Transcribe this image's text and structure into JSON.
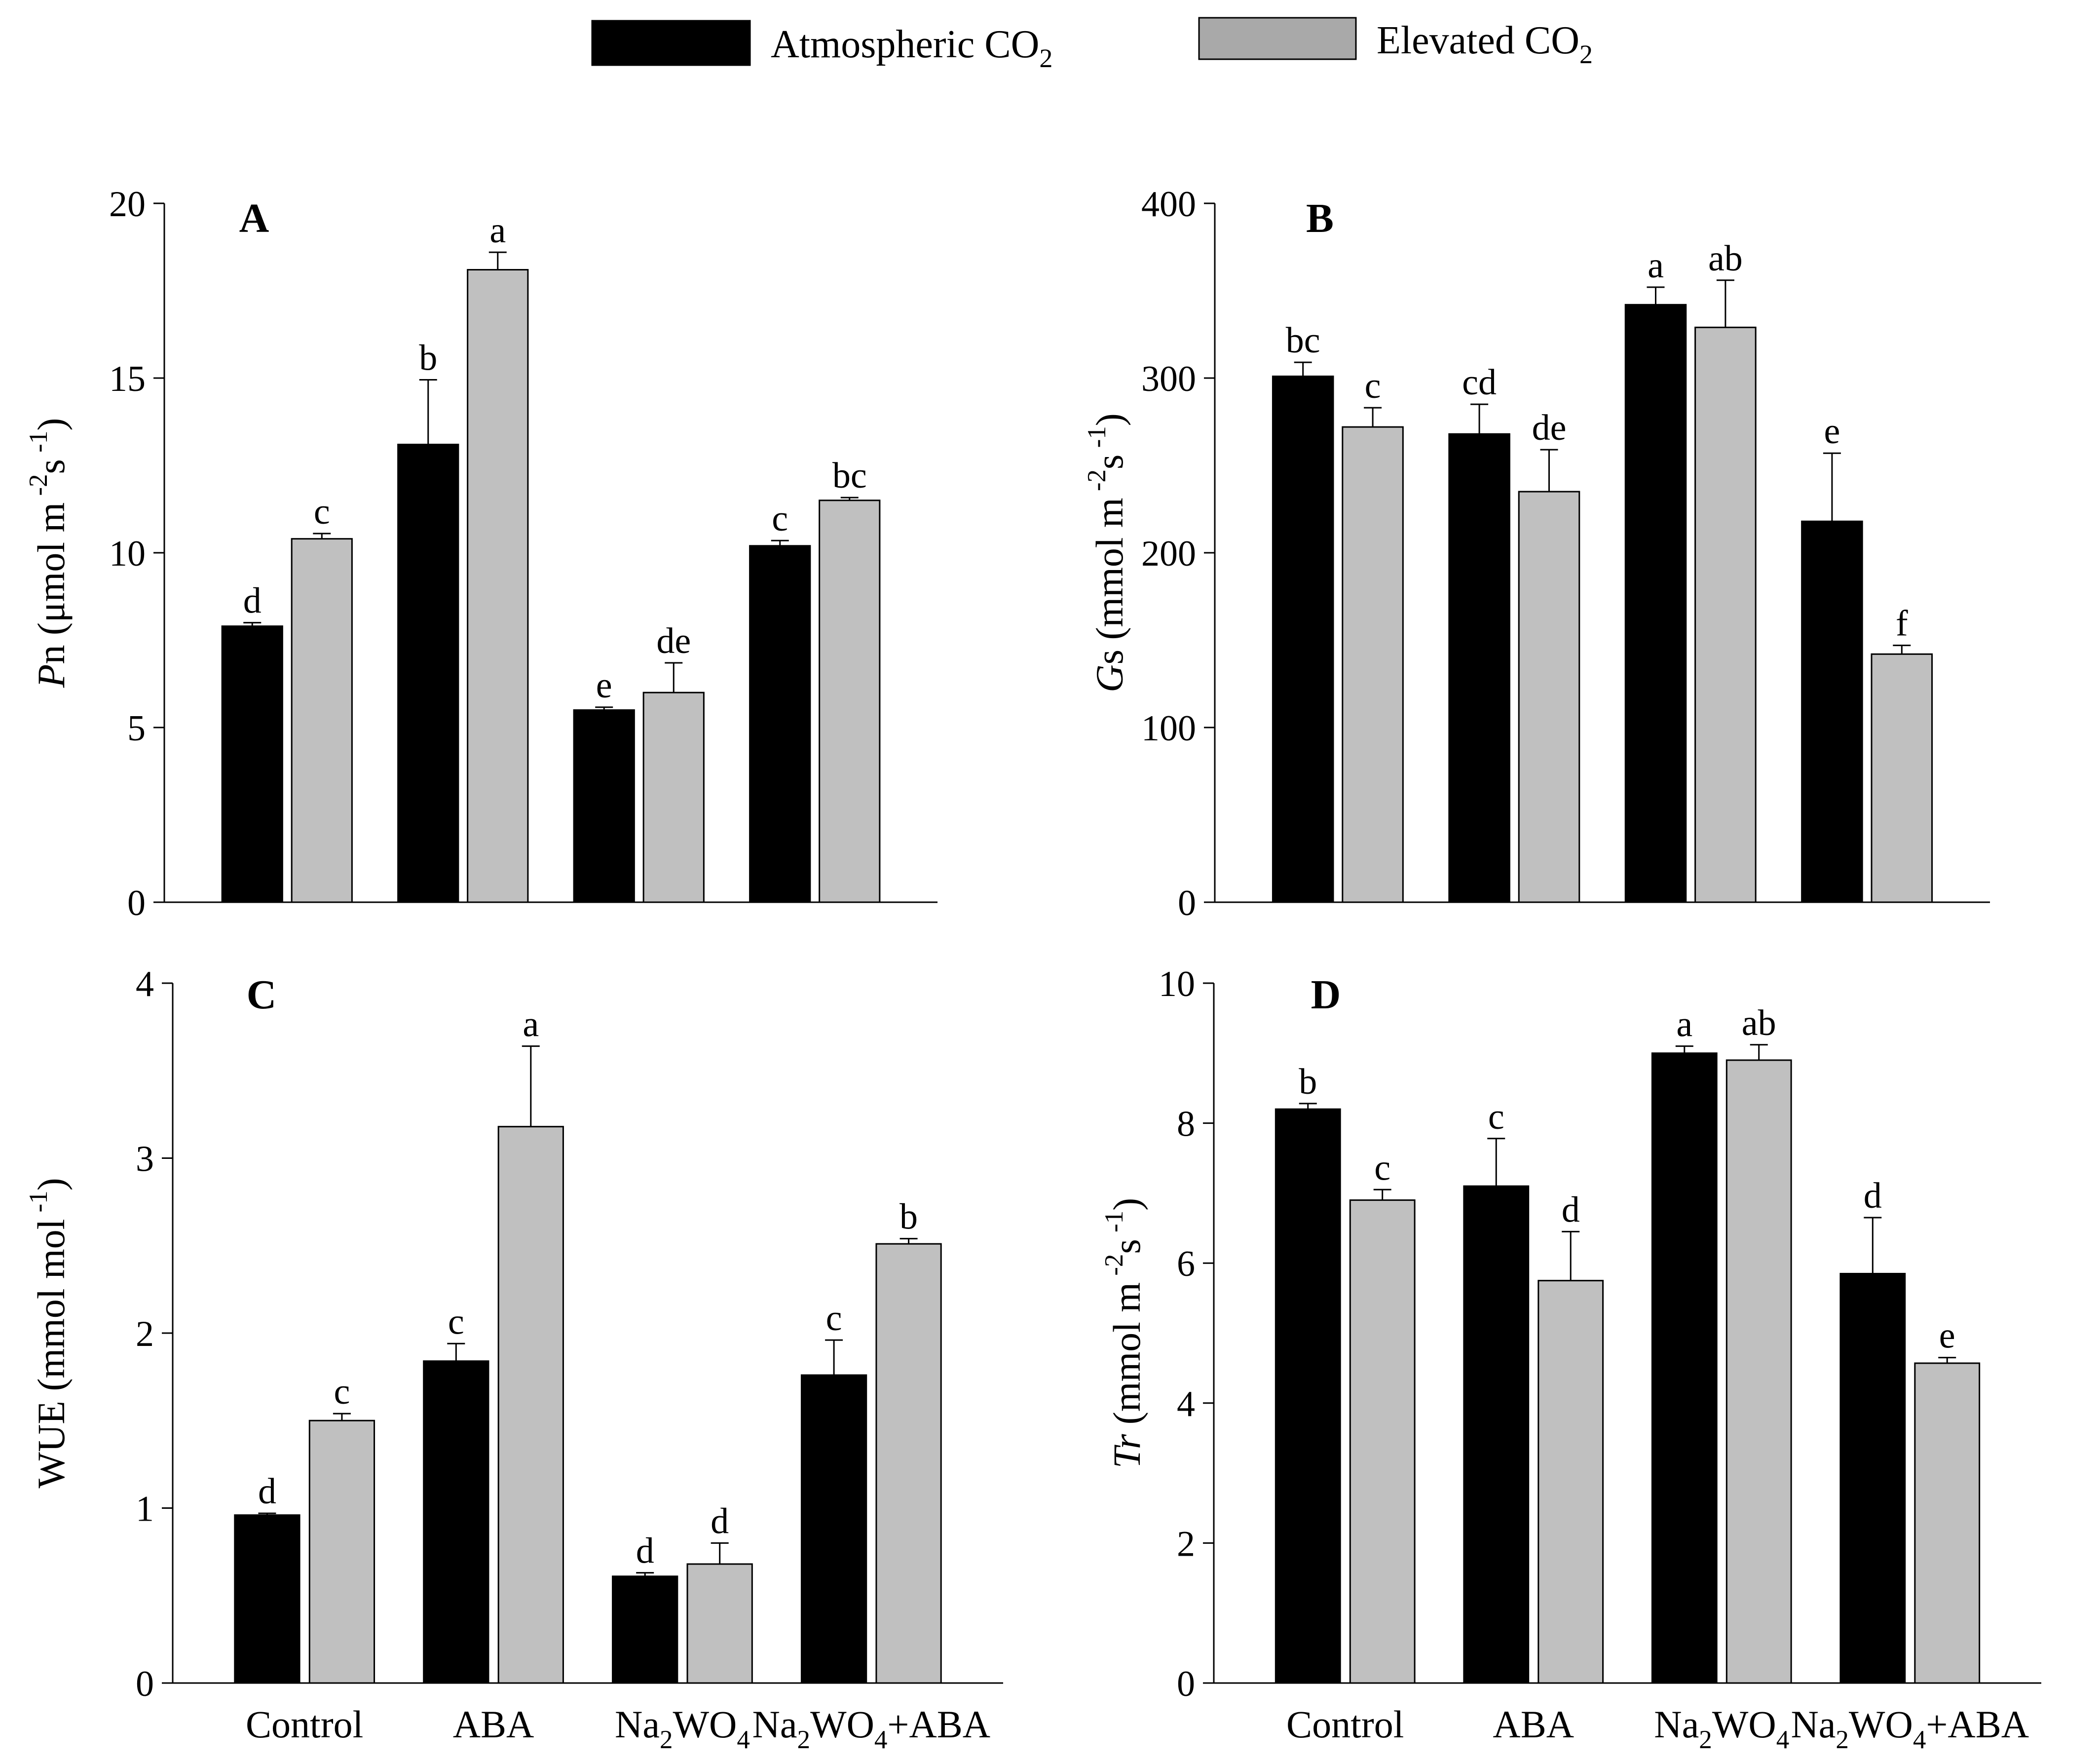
{
  "legend": {
    "items": [
      {
        "label": "Atmospheric CO",
        "sub": "2",
        "color": "#000000"
      },
      {
        "label": "Elevated CO",
        "sub": "2",
        "color": "#a9a9a9"
      }
    ]
  },
  "colors": {
    "atmospheric": "#000000",
    "elevated": "#c0c0c0",
    "axis": "#000000"
  },
  "categories": [
    {
      "parts": [
        {
          "t": "Control"
        }
      ]
    },
    {
      "parts": [
        {
          "t": "ABA"
        }
      ]
    },
    {
      "parts": [
        {
          "t": "Na"
        },
        {
          "t": "2",
          "sub": true
        },
        {
          "t": "WO"
        },
        {
          "t": "4",
          "sub": true
        }
      ]
    },
    {
      "parts": [
        {
          "t": "Na"
        },
        {
          "t": "2",
          "sub": true
        },
        {
          "t": "WO"
        },
        {
          "t": "4",
          "sub": true
        },
        {
          "t": "+ABA"
        }
      ]
    }
  ],
  "chart_data": [
    {
      "panel": "A",
      "type": "bar",
      "ylabel_parts": [
        {
          "t": "P",
          "i": true
        },
        {
          "t": "n (μmol m"
        },
        {
          "t": " -2",
          "sup": true
        },
        {
          "t": "s"
        },
        {
          "t": " -1",
          "sup": true
        },
        {
          "t": ")"
        }
      ],
      "ylim": [
        0,
        20
      ],
      "yticks": [
        0,
        5,
        10,
        15,
        20
      ],
      "series": [
        {
          "name": "Atmospheric CO2",
          "values": [
            7.9,
            13.1,
            5.5,
            10.2
          ],
          "errors": [
            0.1,
            1.85,
            0.08,
            0.15
          ],
          "letters": [
            "d",
            "b",
            "e",
            "c"
          ]
        },
        {
          "name": "Elevated CO2",
          "values": [
            10.4,
            18.1,
            6.0,
            11.5
          ],
          "errors": [
            0.15,
            0.5,
            0.85,
            0.08
          ],
          "letters": [
            "c",
            "a",
            "de",
            "bc"
          ]
        }
      ]
    },
    {
      "panel": "B",
      "type": "bar",
      "ylabel_parts": [
        {
          "t": "G",
          "i": true
        },
        {
          "t": "s (mmol  m"
        },
        {
          "t": " -2",
          "sup": true
        },
        {
          "t": "s"
        },
        {
          "t": " -1",
          "sup": true
        },
        {
          "t": ")"
        }
      ],
      "ylim": [
        0,
        400
      ],
      "yticks": [
        0,
        100,
        200,
        300,
        400
      ],
      "series": [
        {
          "name": "Atmospheric CO2",
          "values": [
            301,
            268,
            342,
            218
          ],
          "errors": [
            8,
            17,
            10,
            39
          ],
          "letters": [
            "bc",
            "cd",
            "a",
            "e"
          ]
        },
        {
          "name": "Elevated CO2",
          "values": [
            272,
            235,
            329,
            142
          ],
          "errors": [
            11,
            24,
            27,
            5
          ],
          "letters": [
            "c",
            "de",
            "ab",
            "f"
          ]
        }
      ]
    },
    {
      "panel": "C",
      "type": "bar",
      "ylabel_parts": [
        {
          "t": "WUE (mmol mol"
        },
        {
          "t": " -1",
          "sup": true
        },
        {
          "t": ")"
        }
      ],
      "ylim": [
        0,
        4
      ],
      "yticks": [
        0,
        1,
        2,
        3,
        4
      ],
      "series": [
        {
          "name": "Atmospheric CO2",
          "values": [
            0.96,
            1.84,
            0.61,
            1.76
          ],
          "errors": [
            0.01,
            0.1,
            0.02,
            0.2
          ],
          "letters": [
            "d",
            "c",
            "d",
            "c"
          ]
        },
        {
          "name": "Elevated CO2",
          "values": [
            1.5,
            3.18,
            0.68,
            2.51
          ],
          "errors": [
            0.04,
            0.46,
            0.12,
            0.03
          ],
          "letters": [
            "c",
            "a",
            "d",
            "b"
          ]
        }
      ]
    },
    {
      "panel": "D",
      "type": "bar",
      "ylabel_parts": [
        {
          "t": "Tr",
          "i": true
        },
        {
          "t": " (mmol m"
        },
        {
          "t": " -2",
          "sup": true
        },
        {
          "t": "s"
        },
        {
          "t": " -1",
          "sup": true
        },
        {
          "t": ")"
        }
      ],
      "ylim": [
        0,
        10
      ],
      "yticks": [
        0,
        2,
        4,
        6,
        8,
        10
      ],
      "series": [
        {
          "name": "Atmospheric CO2",
          "values": [
            8.2,
            7.1,
            9.0,
            5.85
          ],
          "errors": [
            0.08,
            0.68,
            0.1,
            0.8
          ],
          "letters": [
            "b",
            "c",
            "a",
            "d"
          ]
        },
        {
          "name": "Elevated CO2",
          "values": [
            6.9,
            5.75,
            8.9,
            4.57
          ],
          "errors": [
            0.15,
            0.7,
            0.22,
            0.08
          ],
          "letters": [
            "c",
            "d",
            "ab",
            "e"
          ]
        }
      ]
    }
  ]
}
